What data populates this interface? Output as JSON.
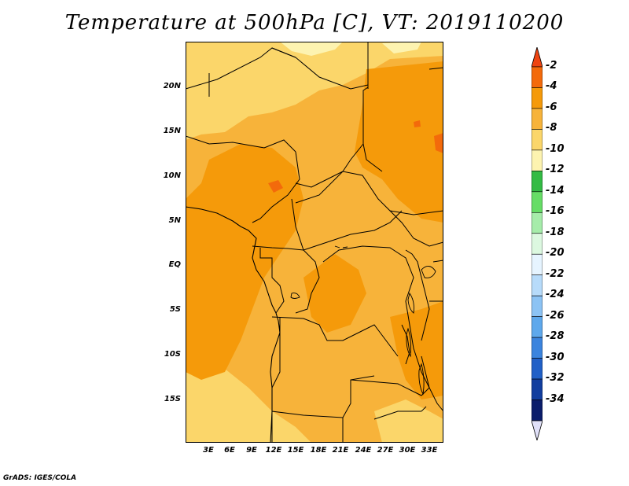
{
  "title": "Temperature at 500hPa [C], VT: 2019110200",
  "credit": "GrADS: IGES/COLA",
  "latitude_labels": [
    "20N",
    "15N",
    "10N",
    "5N",
    "EQ",
    "5S",
    "10S",
    "15S"
  ],
  "longitude_labels": [
    "3E",
    "6E",
    "9E",
    "12E",
    "15E",
    "18E",
    "21E",
    "24E",
    "27E",
    "30E",
    "33E"
  ],
  "colorbar": {
    "labels": [
      "-2",
      "-4",
      "-6",
      "-8",
      "-10",
      "-12",
      "-14",
      "-16",
      "-18",
      "-20",
      "-22",
      "-24",
      "-26",
      "-28",
      "-30",
      "-32",
      "-34"
    ],
    "colors": [
      "#ee4411",
      "#f36a0b",
      "#f59a0a",
      "#f7b33a",
      "#fbd66a",
      "#fdf3b0",
      "#33bb44",
      "#66dd66",
      "#a6ecaa",
      "#dcf8e0",
      "#e6f4ff",
      "#b7dbfa",
      "#8cc3f4",
      "#5ea8ec",
      "#3b84de",
      "#2160c7",
      "#123e9f",
      "#0b1d6b",
      "#e0e0f8"
    ]
  },
  "field_colors": {
    "minus4_to_minus6": "#f59a0a",
    "minus6_to_minus8": "#f7b33a",
    "minus8_to_minus10": "#fbd66a",
    "minus10_to_minus12": "#fdf3b0",
    "minus2_to_minus4": "#f36a0b"
  }
}
